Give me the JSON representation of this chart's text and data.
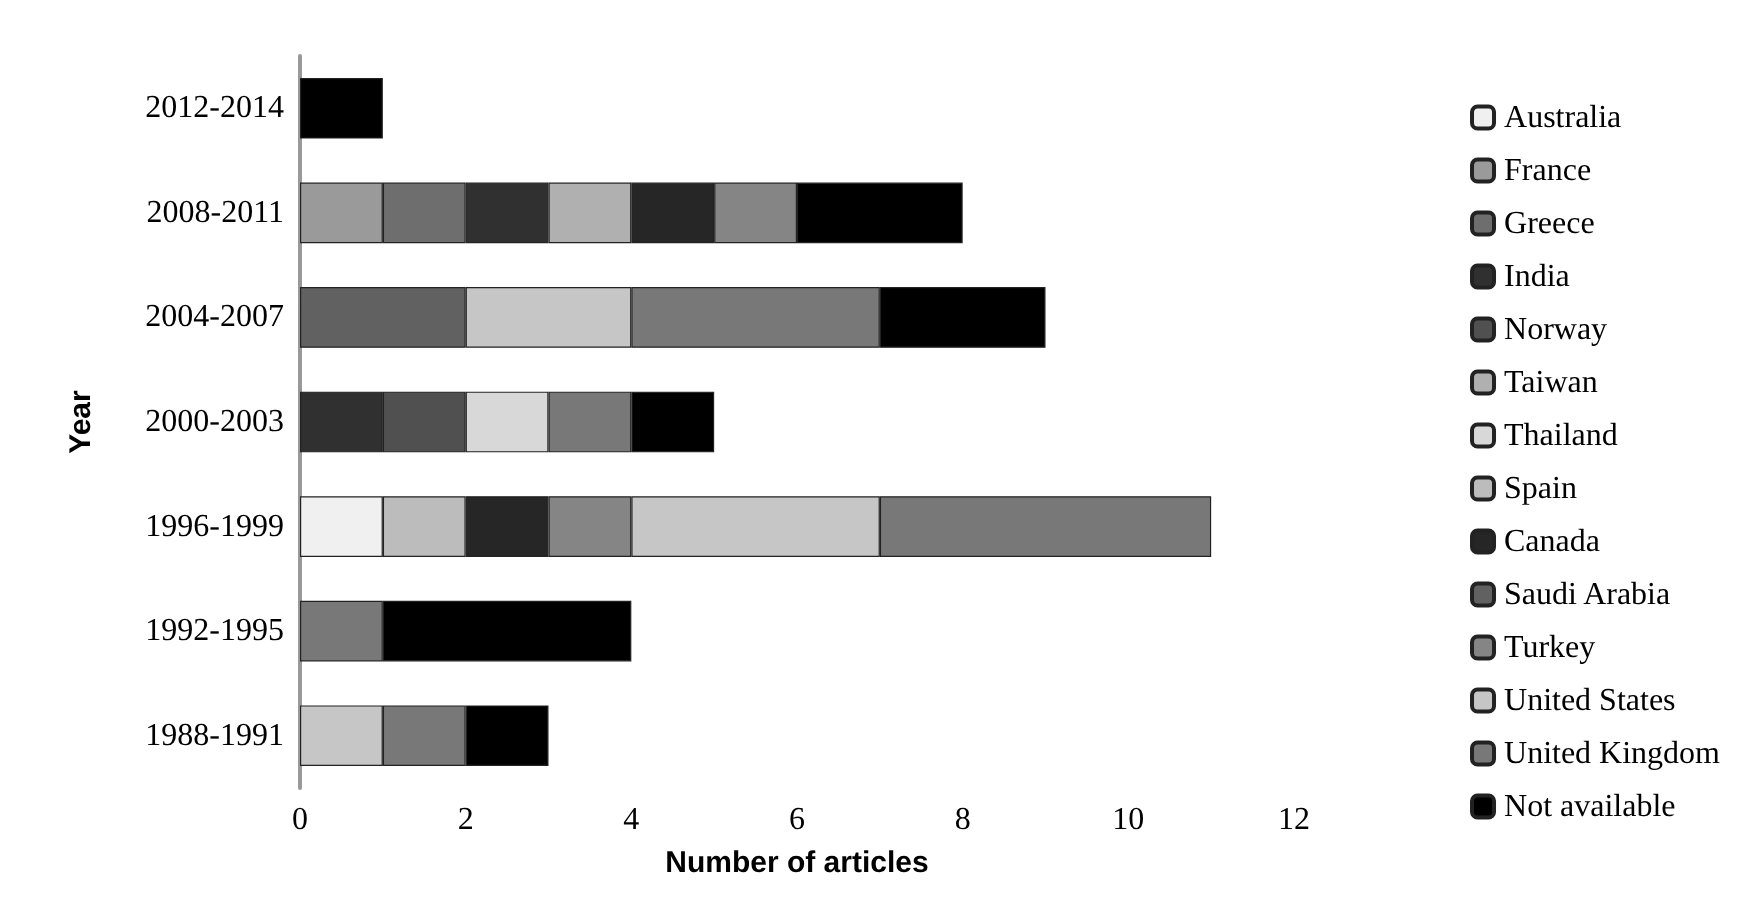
{
  "chart_data": {
    "type": "bar",
    "orientation": "horizontal",
    "stacked": true,
    "xlabel": "Number of articles",
    "ylabel": "Year",
    "categories": [
      "2012-2014",
      "2008-2011",
      "2004-2007",
      "2000-2003",
      "1996-1999",
      "1992-1995",
      "1988-1991"
    ],
    "xlim": [
      0,
      12
    ],
    "xticks": [
      0,
      2,
      4,
      6,
      8,
      10,
      12
    ],
    "grid": false,
    "legend": "right",
    "series": [
      {
        "name": "Australia",
        "color": "#f0f0f0",
        "values": [
          null,
          null,
          null,
          null,
          1,
          null,
          null
        ]
      },
      {
        "name": "France",
        "color": "#9a9a9a",
        "values": [
          null,
          1,
          null,
          null,
          null,
          null,
          null
        ]
      },
      {
        "name": "Greece",
        "color": "#6e6e6e",
        "values": [
          null,
          1,
          null,
          null,
          null,
          null,
          null
        ]
      },
      {
        "name": "India",
        "color": "#303030",
        "values": [
          null,
          1,
          null,
          1,
          null,
          null,
          null
        ]
      },
      {
        "name": "Norway",
        "color": "#505050",
        "values": [
          null,
          null,
          null,
          1,
          null,
          null,
          null
        ]
      },
      {
        "name": "Taiwan",
        "color": "#b0b0b0",
        "values": [
          null,
          1,
          null,
          null,
          null,
          null,
          null
        ]
      },
      {
        "name": "Thailand",
        "color": "#d8d8d8",
        "values": [
          null,
          null,
          null,
          1,
          null,
          null,
          null
        ]
      },
      {
        "name": "Spain",
        "color": "#bcbcbc",
        "values": [
          null,
          null,
          null,
          null,
          1,
          null,
          null
        ]
      },
      {
        "name": "Canada",
        "color": "#262626",
        "values": [
          null,
          1,
          null,
          null,
          1,
          null,
          null
        ]
      },
      {
        "name": "Saudi Arabia",
        "color": "#616161",
        "values": [
          null,
          null,
          2,
          null,
          null,
          null,
          null
        ]
      },
      {
        "name": "Turkey",
        "color": "#858585",
        "values": [
          null,
          1,
          null,
          null,
          1,
          null,
          null
        ]
      },
      {
        "name": "United States",
        "color": "#c6c6c6",
        "values": [
          null,
          null,
          2,
          null,
          3,
          null,
          1
        ]
      },
      {
        "name": "United Kingdom",
        "color": "#787878",
        "values": [
          null,
          null,
          3,
          1,
          4,
          1,
          1
        ]
      },
      {
        "name": "Not available",
        "color": "#000000",
        "values": [
          1,
          2,
          2,
          1,
          null,
          3,
          1
        ]
      }
    ]
  }
}
